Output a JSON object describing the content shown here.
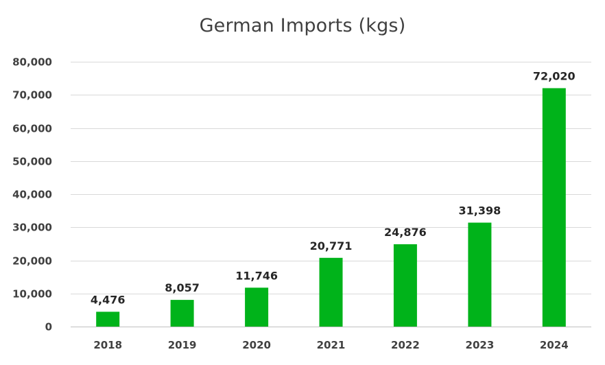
{
  "chart_data": {
    "type": "bar",
    "title": "German Imports (kgs)",
    "xlabel": "",
    "ylabel": "",
    "categories": [
      "2018",
      "2019",
      "2020",
      "2021",
      "2022",
      "2023",
      "2024"
    ],
    "values": [
      4476,
      8057,
      11746,
      20771,
      24876,
      31398,
      72020
    ],
    "value_labels": [
      "4,476",
      "8,057",
      "11,746",
      "20,771",
      "24,876",
      "31,398",
      "72,020"
    ],
    "ylim": [
      0,
      80000
    ],
    "yticks": [
      0,
      10000,
      20000,
      30000,
      40000,
      50000,
      60000,
      70000,
      80000
    ],
    "ytick_labels": [
      "0",
      "10,000",
      "20,000",
      "30,000",
      "40,000",
      "50,000",
      "60,000",
      "70,000",
      "80,000"
    ],
    "grid": true,
    "legend": "none",
    "bar_color": "#00b31a"
  }
}
